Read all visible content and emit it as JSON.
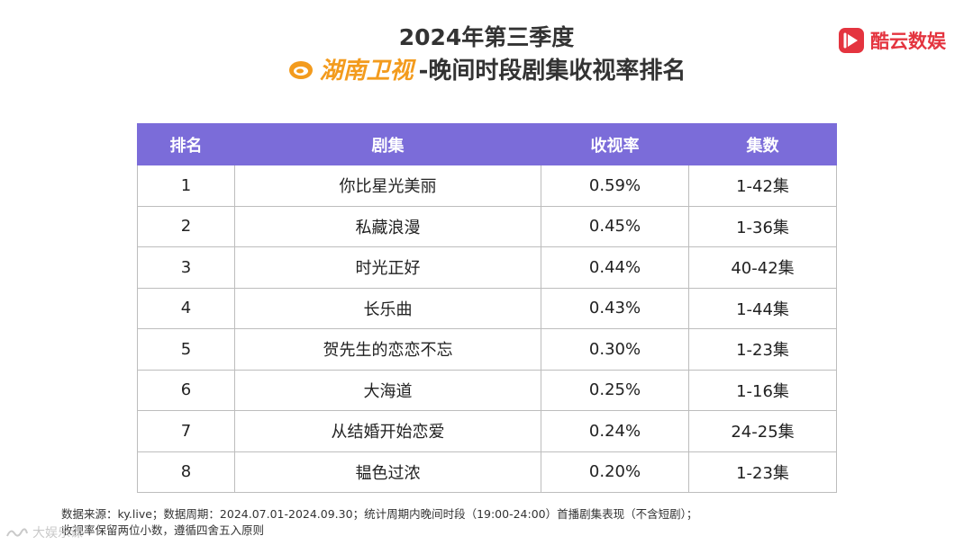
{
  "title": {
    "line1": "2024年第三季度",
    "channel": "湖南卫视",
    "line2_suffix": "-晚间时段剧集收视率排名"
  },
  "brand": {
    "name": "酷云数娱",
    "color": "#e4343f"
  },
  "colors": {
    "header_bg": "#7b6cd9",
    "channel": "#f39b1d"
  },
  "table": {
    "headers": [
      "排名",
      "剧集",
      "收视率",
      "集数"
    ],
    "rows": [
      [
        "1",
        "你比星光美丽",
        "0.59%",
        "1-42集"
      ],
      [
        "2",
        "私藏浪漫",
        "0.45%",
        "1-36集"
      ],
      [
        "3",
        "时光正好",
        "0.44%",
        "40-42集"
      ],
      [
        "4",
        "长乐曲",
        "0.43%",
        "1-44集"
      ],
      [
        "5",
        "贺先生的恋恋不忘",
        "0.30%",
        "1-23集"
      ],
      [
        "6",
        "大海道",
        "0.25%",
        "1-16集"
      ],
      [
        "7",
        "从结婚开始恋爱",
        "0.24%",
        "24-25集"
      ],
      [
        "8",
        "韫色过浓",
        "0.20%",
        "1-23集"
      ]
    ]
  },
  "footer": {
    "line1": "数据来源：ky.live；数据周期：2024.07.01-2024.09.30；统计周期内晚间时段（19:00-24:00）首播剧集表现（不含短剧）；",
    "line2": "收视率保留两位小数，遵循四舍五入原则"
  },
  "watermark": "大娱乐课"
}
